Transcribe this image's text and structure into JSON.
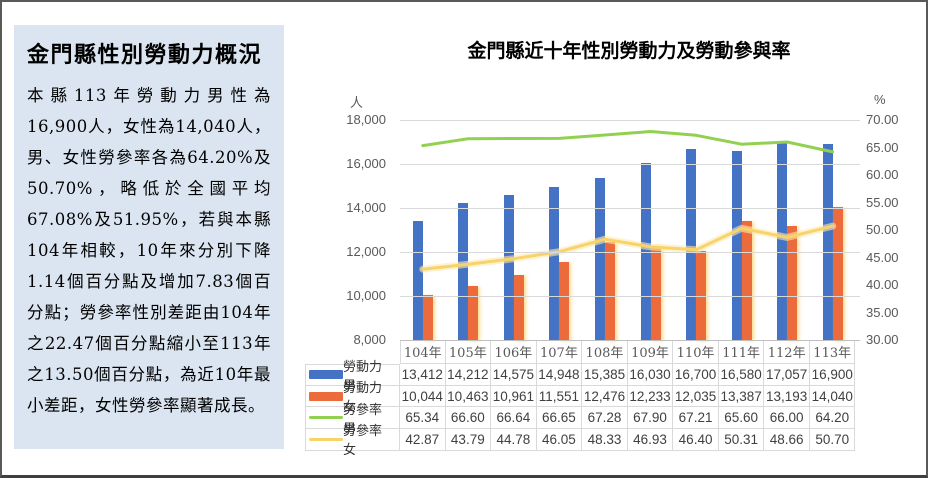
{
  "sidebar": {
    "title": "金門縣性別勞動力概況",
    "body": "本縣113年勞動力男性為16,900人，女性為14,040人，男、女性勞參率各為64.20%及50.70%，略低於全國平均67.08%及51.95%，若與本縣104年相較，10年來分別下降1.14個百分點及增加7.83個百分點；勞參率性別差距由104年之22.47個百分點縮小至113年之13.50個百分點，為近10年最小差距，女性勞參率顯著成長。"
  },
  "chart_data": {
    "type": "bar",
    "subtype": "combo-bar-line",
    "title": "金門縣近十年性別勞動力及勞動參與率",
    "categories": [
      "104年",
      "105年",
      "106年",
      "107年",
      "108年",
      "109年",
      "110年",
      "111年",
      "112年",
      "113年"
    ],
    "series": [
      {
        "name": "勞動力 男",
        "kind": "bar",
        "axis": "left",
        "color": "#4472c4",
        "values": [
          13412,
          14212,
          14575,
          14948,
          15385,
          16030,
          16700,
          16580,
          17057,
          16900
        ]
      },
      {
        "name": "勞動力 女",
        "kind": "bar",
        "axis": "left",
        "color": "#ec6b3c",
        "values": [
          10044,
          10463,
          10961,
          11551,
          12476,
          12233,
          12035,
          13387,
          13193,
          14040
        ]
      },
      {
        "name": "勞參率 男",
        "kind": "line",
        "axis": "right",
        "color": "#92d050",
        "values": [
          65.34,
          66.6,
          66.64,
          66.65,
          67.28,
          67.9,
          67.21,
          65.6,
          66.0,
          64.2
        ]
      },
      {
        "name": "勞參率 女",
        "kind": "line",
        "axis": "right",
        "color": "#f8d36a",
        "values": [
          42.87,
          43.79,
          44.78,
          46.05,
          48.33,
          46.93,
          46.4,
          50.31,
          48.66,
          50.7
        ]
      }
    ],
    "left_axis": {
      "unit": "人",
      "min": 8000,
      "max": 18000,
      "step": 2000
    },
    "right_axis": {
      "unit": "%",
      "min": 30,
      "max": 70,
      "step": 5
    },
    "grid": true,
    "legend_position": "data-table-left",
    "data_table": true
  },
  "colors": {
    "panel_bg": "#dae5f1",
    "gridline": "#d9d9d9",
    "axis_line": "#bfbfbf",
    "axis_text": "#595959",
    "table_text": "#404040",
    "frame": "#595959"
  }
}
